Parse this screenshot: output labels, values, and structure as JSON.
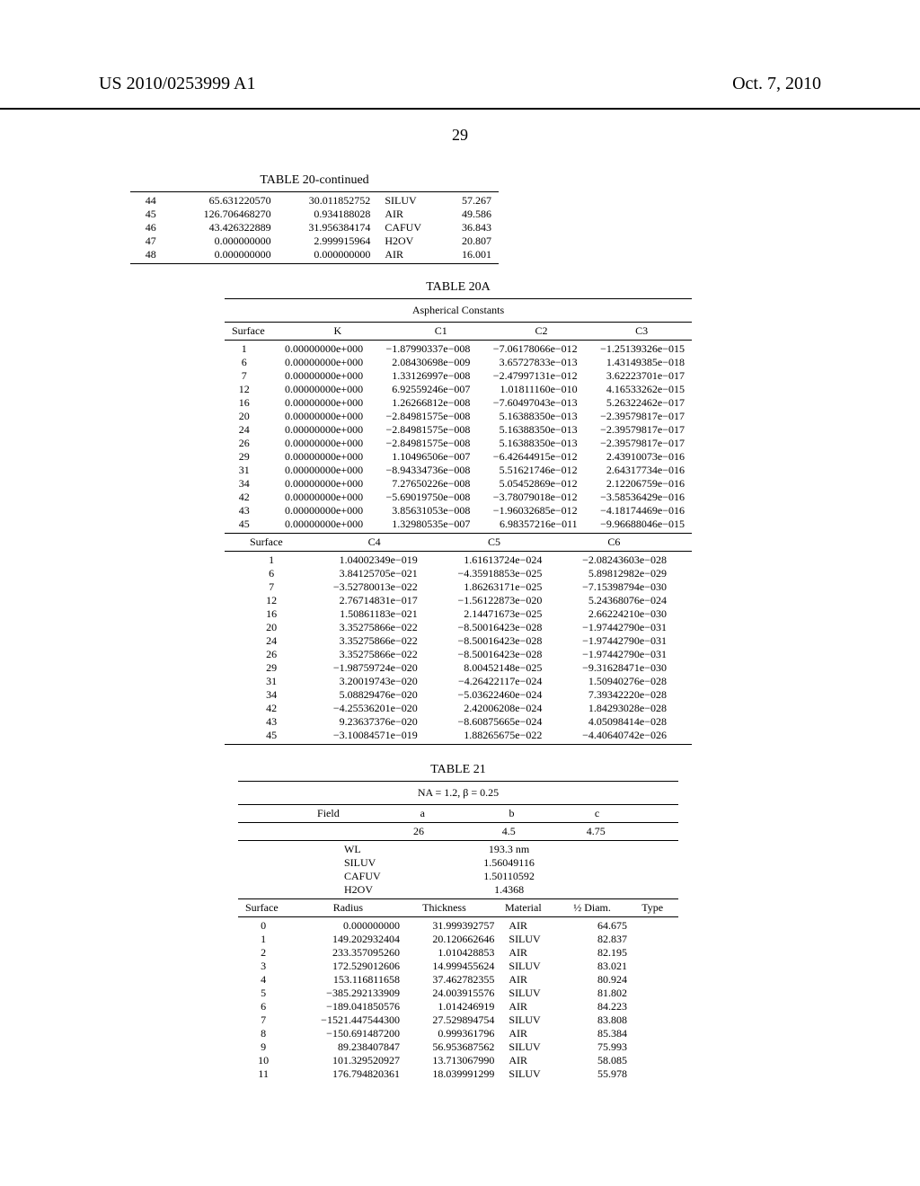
{
  "header": {
    "pub_no": "US 2010/0253999 A1",
    "pub_date": "Oct. 7, 2010"
  },
  "page_no": "29",
  "table20c": {
    "title": "TABLE 20-continued",
    "rows": [
      [
        "44",
        "65.631220570",
        "30.011852752",
        "SILUV",
        "57.267"
      ],
      [
        "45",
        "126.706468270",
        "0.934188028",
        "AIR",
        "49.586"
      ],
      [
        "46",
        "43.426322889",
        "31.956384174",
        "CAFUV",
        "36.843"
      ],
      [
        "47",
        "0.000000000",
        "2.999915964",
        "H2OV",
        "20.807"
      ],
      [
        "48",
        "0.000000000",
        "0.000000000",
        "AIR",
        "16.001"
      ]
    ]
  },
  "table20a": {
    "title": "TABLE 20A",
    "subtitle": "Aspherical Constants",
    "head1": [
      "Surface",
      "K",
      "C1",
      "C2",
      "C3"
    ],
    "rows1": [
      [
        "1",
        "0.00000000e+000",
        "−1.87990337e−008",
        "−7.06178066e−012",
        "−1.25139326e−015"
      ],
      [
        "6",
        "0.00000000e+000",
        "2.08430698e−009",
        "3.65727833e−013",
        "1.43149385e−018"
      ],
      [
        "7",
        "0.00000000e+000",
        "1.33126997e−008",
        "−2.47997131e−012",
        "3.62223701e−017"
      ],
      [
        "12",
        "0.00000000e+000",
        "6.92559246e−007",
        "1.01811160e−010",
        "4.16533262e−015"
      ],
      [
        "16",
        "0.00000000e+000",
        "1.26266812e−008",
        "−7.60497043e−013",
        "5.26322462e−017"
      ],
      [
        "20",
        "0.00000000e+000",
        "−2.84981575e−008",
        "5.16388350e−013",
        "−2.39579817e−017"
      ],
      [
        "24",
        "0.00000000e+000",
        "−2.84981575e−008",
        "5.16388350e−013",
        "−2.39579817e−017"
      ],
      [
        "26",
        "0.00000000e+000",
        "−2.84981575e−008",
        "5.16388350e−013",
        "−2.39579817e−017"
      ],
      [
        "29",
        "0.00000000e+000",
        "1.10496506e−007",
        "−6.42644915e−012",
        "2.43910073e−016"
      ],
      [
        "31",
        "0.00000000e+000",
        "−8.94334736e−008",
        "5.51621746e−012",
        "2.64317734e−016"
      ],
      [
        "34",
        "0.00000000e+000",
        "7.27650226e−008",
        "5.05452869e−012",
        "2.12206759e−016"
      ],
      [
        "42",
        "0.00000000e+000",
        "−5.69019750e−008",
        "−3.78079018e−012",
        "−3.58536429e−016"
      ],
      [
        "43",
        "0.00000000e+000",
        "3.85631053e−008",
        "−1.96032685e−012",
        "−4.18174469e−016"
      ],
      [
        "45",
        "0.00000000e+000",
        "1.32980535e−007",
        "6.98357216e−011",
        "−9.96688046e−015"
      ]
    ],
    "head2": [
      "Surface",
      "C4",
      "C5",
      "C6"
    ],
    "rows2": [
      [
        "1",
        "1.04002349e−019",
        "1.61613724e−024",
        "−2.08243603e−028"
      ],
      [
        "6",
        "3.84125705e−021",
        "−4.35918853e−025",
        "5.89812982e−029"
      ],
      [
        "7",
        "−3.52780013e−022",
        "1.86263171e−025",
        "−7.15398794e−030"
      ],
      [
        "12",
        "2.76714831e−017",
        "−1.56122873e−020",
        "5.24368076e−024"
      ],
      [
        "16",
        "1.50861183e−021",
        "2.14471673e−025",
        "2.66224210e−030"
      ],
      [
        "20",
        "3.35275866e−022",
        "−8.50016423e−028",
        "−1.97442790e−031"
      ],
      [
        "24",
        "3.35275866e−022",
        "−8.50016423e−028",
        "−1.97442790e−031"
      ],
      [
        "26",
        "3.35275866e−022",
        "−8.50016423e−028",
        "−1.97442790e−031"
      ],
      [
        "29",
        "−1.98759724e−020",
        "8.00452148e−025",
        "−9.31628471e−030"
      ],
      [
        "31",
        "3.20019743e−020",
        "−4.26422117e−024",
        "1.50940276e−028"
      ],
      [
        "34",
        "5.08829476e−020",
        "−5.03622460e−024",
        "7.39342220e−028"
      ],
      [
        "42",
        "−4.25536201e−020",
        "2.42006208e−024",
        "1.84293028e−028"
      ],
      [
        "43",
        "9.23637376e−020",
        "−8.60875665e−024",
        "4.05098414e−028"
      ],
      [
        "45",
        "−3.10084571e−019",
        "1.88265675e−022",
        "−4.40640742e−026"
      ]
    ]
  },
  "table21": {
    "title": "TABLE 21",
    "subtitle": "NA = 1.2, β = 0.25",
    "field_head": [
      "Field",
      "a",
      "b",
      "c"
    ],
    "field_row": [
      "",
      "26",
      "4.5",
      "4.75"
    ],
    "params_labels": [
      "WL",
      "SILUV",
      "CAFUV",
      "H2OV"
    ],
    "params_values": [
      "193.3 nm",
      "1.56049116",
      "1.50110592",
      "1.4368"
    ],
    "main_head": [
      "Surface",
      "Radius",
      "Thickness",
      "Material",
      "½ Diam.",
      "Type"
    ],
    "rows": [
      [
        "0",
        "0.000000000",
        "31.999392757",
        "AIR",
        "64.675",
        ""
      ],
      [
        "1",
        "149.202932404",
        "20.120662646",
        "SILUV",
        "82.837",
        ""
      ],
      [
        "2",
        "233.357095260",
        "1.010428853",
        "AIR",
        "82.195",
        ""
      ],
      [
        "3",
        "172.529012606",
        "14.999455624",
        "SILUV",
        "83.021",
        ""
      ],
      [
        "4",
        "153.116811658",
        "37.462782355",
        "AIR",
        "80.924",
        ""
      ],
      [
        "5",
        "−385.292133909",
        "24.003915576",
        "SILUV",
        "81.802",
        ""
      ],
      [
        "6",
        "−189.041850576",
        "1.014246919",
        "AIR",
        "84.223",
        ""
      ],
      [
        "7",
        "−1521.447544300",
        "27.529894754",
        "SILUV",
        "83.808",
        ""
      ],
      [
        "8",
        "−150.691487200",
        "0.999361796",
        "AIR",
        "85.384",
        ""
      ],
      [
        "9",
        "89.238407847",
        "56.953687562",
        "SILUV",
        "75.993",
        ""
      ],
      [
        "10",
        "101.329520927",
        "13.713067990",
        "AIR",
        "58.085",
        ""
      ],
      [
        "11",
        "176.794820361",
        "18.039991299",
        "SILUV",
        "55.978",
        ""
      ]
    ]
  }
}
